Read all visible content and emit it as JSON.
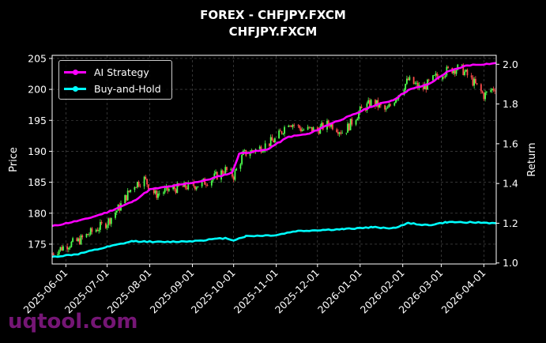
{
  "title_line1": "FOREX - CHFJPY.FXCM",
  "title_line2": "CHFJPY.FXCM",
  "watermark": "uqtool.com",
  "colors": {
    "background": "#000000",
    "strategy": "#ff00ff",
    "buy_hold": "#00ffff",
    "candle_up": "#4cff4c",
    "candle_down": "#ff4c4c"
  },
  "chart_data": {
    "type": "line",
    "title": "FOREX - CHFJPY.FXCM\nCHFJPY.FXCM",
    "ylabel": "Price",
    "y2label": "Return",
    "ylim": [
      171.8,
      205.5
    ],
    "y2lim": [
      0.995,
      2.045
    ],
    "y_ticks": [
      175,
      180,
      185,
      190,
      195,
      200,
      205
    ],
    "y2_ticks": [
      "1.0",
      "1.2",
      "1.4",
      "1.6",
      "1.8",
      "2.0"
    ],
    "x_ticks": [
      "2025-06-01",
      "2025-07-01",
      "2025-08-01",
      "2025-09-01",
      "2025-10-01",
      "2025-11-01",
      "2025-12-01",
      "2026-01-01",
      "2026-02-01",
      "2026-03-01",
      "2026-04-01"
    ],
    "xlim": [
      "2025-05-22",
      "2026-04-10"
    ],
    "grid": true,
    "legend_position": "top-left",
    "price_candles_close": [
      [
        "2025-05-22",
        173.5
      ],
      [
        "2025-06-01",
        174.8
      ],
      [
        "2025-06-10",
        175.5
      ],
      [
        "2025-06-20",
        177.0
      ],
      [
        "2025-07-01",
        178.5
      ],
      [
        "2025-07-10",
        181.0
      ],
      [
        "2025-07-20",
        184.5
      ],
      [
        "2025-07-28",
        185.5
      ],
      [
        "2025-08-05",
        183.0
      ],
      [
        "2025-08-15",
        183.8
      ],
      [
        "2025-08-25",
        184.2
      ],
      [
        "2025-09-05",
        184.6
      ],
      [
        "2025-09-15",
        185.5
      ],
      [
        "2025-09-25",
        187.0
      ],
      [
        "2025-10-01",
        186.0
      ],
      [
        "2025-10-08",
        189.5
      ],
      [
        "2025-10-20",
        190.5
      ],
      [
        "2025-11-01",
        192.0
      ],
      [
        "2025-11-10",
        194.8
      ],
      [
        "2025-11-20",
        193.5
      ],
      [
        "2025-12-01",
        193.5
      ],
      [
        "2025-12-10",
        194.5
      ],
      [
        "2025-12-20",
        193.0
      ],
      [
        "2026-01-01",
        196.5
      ],
      [
        "2026-01-10",
        198.0
      ],
      [
        "2026-01-20",
        196.5
      ],
      [
        "2026-01-28",
        199.0
      ],
      [
        "2026-02-05",
        201.5
      ],
      [
        "2026-02-15",
        200.0
      ],
      [
        "2026-02-25",
        202.0
      ],
      [
        "2026-03-05",
        203.0
      ],
      [
        "2026-03-15",
        203.5
      ],
      [
        "2026-03-25",
        201.0
      ],
      [
        "2026-04-01",
        199.0
      ],
      [
        "2026-04-10",
        200.5
      ]
    ],
    "series": [
      {
        "name": "AI Strategy",
        "axis": "right",
        "points": [
          [
            "2025-05-22",
            1.185
          ],
          [
            "2025-06-15",
            1.22
          ],
          [
            "2025-07-01",
            1.255
          ],
          [
            "2025-07-20",
            1.31
          ],
          [
            "2025-08-01",
            1.37
          ],
          [
            "2025-08-20",
            1.39
          ],
          [
            "2025-09-10",
            1.415
          ],
          [
            "2025-09-30",
            1.455
          ],
          [
            "2025-10-05",
            1.55
          ],
          [
            "2025-10-25",
            1.57
          ],
          [
            "2025-11-10",
            1.635
          ],
          [
            "2025-11-25",
            1.65
          ],
          [
            "2025-12-10",
            1.7
          ],
          [
            "2025-12-25",
            1.74
          ],
          [
            "2026-01-10",
            1.79
          ],
          [
            "2026-01-25",
            1.82
          ],
          [
            "2026-02-05",
            1.87
          ],
          [
            "2026-02-20",
            1.9
          ],
          [
            "2026-03-05",
            1.96
          ],
          [
            "2026-03-20",
            1.995
          ],
          [
            "2026-04-10",
            2.005
          ]
        ]
      },
      {
        "name": "Buy-and-Hold",
        "axis": "right",
        "points": [
          [
            "2025-05-22",
            1.03
          ],
          [
            "2025-06-10",
            1.045
          ],
          [
            "2025-07-01",
            1.08
          ],
          [
            "2025-07-20",
            1.11
          ],
          [
            "2025-08-10",
            1.105
          ],
          [
            "2025-09-01",
            1.11
          ],
          [
            "2025-09-25",
            1.125
          ],
          [
            "2025-10-01",
            1.115
          ],
          [
            "2025-10-10",
            1.135
          ],
          [
            "2025-11-01",
            1.14
          ],
          [
            "2025-11-15",
            1.16
          ],
          [
            "2025-12-01",
            1.165
          ],
          [
            "2025-12-20",
            1.17
          ],
          [
            "2026-01-10",
            1.18
          ],
          [
            "2026-01-25",
            1.175
          ],
          [
            "2026-02-05",
            1.2
          ],
          [
            "2026-02-20",
            1.19
          ],
          [
            "2026-03-05",
            1.205
          ],
          [
            "2026-03-20",
            1.205
          ],
          [
            "2026-04-10",
            1.2
          ]
        ]
      }
    ]
  }
}
